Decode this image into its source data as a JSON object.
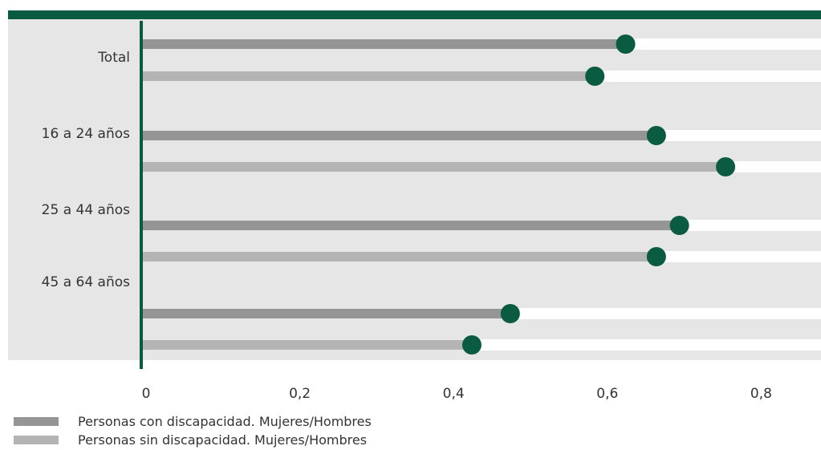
{
  "colors": {
    "accent": "#0b5a42",
    "band": "#e6e6e6",
    "series_con": "#959595",
    "series_sin": "#b4b4b4"
  },
  "chart_data": {
    "type": "bar",
    "orientation": "horizontal",
    "style": "lollipop",
    "categories": [
      "Total",
      "16 a 24 años",
      "25 a 44 años",
      "45 a 64 años"
    ],
    "series": [
      {
        "name": "Personas con discapacidad. Mujeres/Hombres",
        "values": [
          0.63,
          0.67,
          0.7,
          0.48
        ]
      },
      {
        "name": "Personas sin discapacidad. Mujeres/Hombres",
        "values": [
          0.59,
          0.76,
          0.67,
          0.43
        ]
      }
    ],
    "x_ticks": [
      "0",
      "0,2",
      "0,4",
      "0,6",
      "0,8"
    ],
    "x_tick_values": [
      0,
      0.2,
      0.4,
      0.6,
      0.8
    ],
    "xlim": [
      0,
      0.9
    ],
    "legend_position": "bottom-left",
    "grid": false,
    "title": "",
    "xlabel": "",
    "ylabel": ""
  },
  "legend": {
    "items": [
      {
        "label": "Personas con discapacidad. Mujeres/Hombres",
        "color": "#959595"
      },
      {
        "label": "Personas sin discapacidad. Mujeres/Hombres",
        "color": "#b4b4b4"
      }
    ]
  }
}
